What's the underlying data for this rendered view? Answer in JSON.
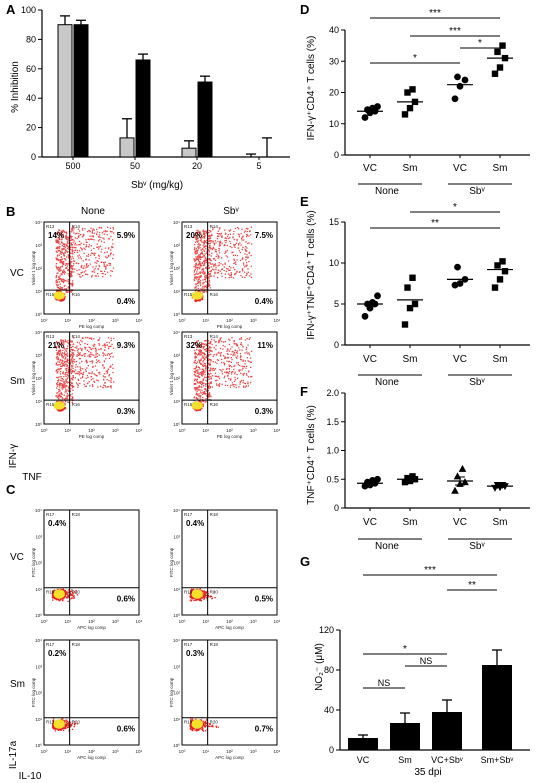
{
  "panels": {
    "A": "A",
    "B": "B",
    "C": "C",
    "D": "D",
    "E": "E",
    "F": "F",
    "G": "G"
  },
  "colors": {
    "flow_dense": "#f5e02a",
    "flow_mid": "#e62020",
    "flow_sparse": "#e84848",
    "grey_bar": "#c8c8c8",
    "black_bar": "#000000"
  },
  "flow": {
    "B": {
      "col_labels": [
        "None",
        "Sbᵛ"
      ],
      "row_labels": [
        "VC",
        "Sm"
      ],
      "y_label": "IFN-γ",
      "x_label": "TNF",
      "axis_y": "Violet 1 log comp",
      "axis_x": "PE log comp",
      "ticks": [
        "10⁰",
        "10¹",
        "10²",
        "10³",
        "10⁴"
      ],
      "region_labels": {
        "ul": "R13",
        "ur": "R14",
        "ll": "R15",
        "lr": "R16"
      },
      "plots": [
        {
          "ul": "14%",
          "ur": "5.9%",
          "lr": "0.4%"
        },
        {
          "ul": "20%",
          "ur": "7.5%",
          "lr": "0.4%"
        },
        {
          "ul": "21%",
          "ur": "9.3%",
          "lr": "0.3%"
        },
        {
          "ul": "32%",
          "ur": "11%",
          "lr": "0.3%"
        }
      ]
    },
    "C": {
      "row_labels": [
        "VC",
        "Sm"
      ],
      "y_label": "IL-17a",
      "x_label": "IL-10",
      "axis_y": "FITC log comp",
      "axis_x": "APC log comp",
      "ticks": [
        "10⁰",
        "10¹",
        "10²",
        "10³",
        "10⁴"
      ],
      "region_labels": {
        "ul": "R17",
        "ur": "R18",
        "ll": "R19",
        "lr": "R20"
      },
      "plots": [
        {
          "ul": "0.4%",
          "lr": "0.6%"
        },
        {
          "ul": "0.4%",
          "lr": "0.5%"
        },
        {
          "ul": "0.2%",
          "lr": "0.6%"
        },
        {
          "ul": "0.3%",
          "lr": "0.7%"
        }
      ]
    }
  },
  "chart_data": [
    {
      "panel": "A",
      "type": "bar",
      "categories": [
        "500",
        "50",
        "20",
        "5"
      ],
      "series": [
        {
          "color": "#c8c8c8",
          "values": [
            90,
            13,
            6,
            0
          ],
          "errors": [
            6,
            13,
            5,
            2
          ]
        },
        {
          "color": "#000000",
          "values": [
            90,
            66,
            51,
            0
          ],
          "errors": [
            3,
            4,
            4,
            13
          ]
        }
      ],
      "ylabel": "% Inhibition",
      "xlabel": "Sbᵛ (mg/kg)",
      "ylim": [
        0,
        100
      ],
      "yticks": [
        0,
        20,
        40,
        60,
        80,
        100
      ]
    },
    {
      "panel": "D",
      "type": "scatter",
      "ylabel": "IFN-γ⁺CD4⁺ T cells (%)",
      "ylim": [
        0,
        40
      ],
      "yticks": [
        0,
        10,
        20,
        30,
        40
      ],
      "categories": [
        "VC",
        "Sm",
        "VC",
        "Sm"
      ],
      "groups": [
        "None",
        "Sbᵛ"
      ],
      "markers": [
        "circle",
        "square",
        "circle",
        "square"
      ],
      "points": [
        [
          12,
          13.5,
          14,
          14.5,
          15,
          15.5
        ],
        [
          13,
          15,
          17,
          20,
          21
        ],
        [
          18,
          22,
          24,
          25
        ],
        [
          26,
          28,
          31,
          33,
          35
        ]
      ],
      "medians": [
        14,
        17,
        22.5,
        31
      ],
      "significance": [
        {
          "from": 0,
          "to": 3,
          "label": "***"
        },
        {
          "from": 1,
          "to": 3,
          "label": "***"
        },
        {
          "from": 2,
          "to": 3,
          "label": "*"
        },
        {
          "from": 0,
          "to": 2,
          "label": "*"
        }
      ]
    },
    {
      "panel": "E",
      "type": "scatter",
      "ylabel": "IFN-γ⁺TNF⁺CD4⁺ T cells (%)",
      "ylim": [
        0,
        15
      ],
      "yticks": [
        0,
        5,
        10,
        15
      ],
      "categories": [
        "VC",
        "Sm",
        "VC",
        "Sm"
      ],
      "groups": [
        "None",
        "Sbᵛ"
      ],
      "markers": [
        "circle",
        "square",
        "circle",
        "square"
      ],
      "points": [
        [
          3.5,
          4.5,
          5,
          5,
          5.2,
          6
        ],
        [
          2.5,
          4.5,
          5,
          7,
          8.2
        ],
        [
          7.3,
          7.5,
          8,
          9.5
        ],
        [
          7,
          8,
          9,
          9.7,
          10.2
        ]
      ],
      "medians": [
        5,
        5.5,
        8,
        9.2
      ],
      "significance": [
        {
          "from": 1,
          "to": 3,
          "label": "*"
        },
        {
          "from": 0,
          "to": 3,
          "label": "**"
        }
      ]
    },
    {
      "panel": "F",
      "type": "scatter",
      "ylabel": "TNF⁺CD4⁺ T cells (%)",
      "ylim": [
        0,
        2.0
      ],
      "yticks": [
        "0",
        "0.5",
        "1.0",
        "1.5",
        "2.0"
      ],
      "categories": [
        "VC",
        "Sm",
        "VC",
        "Sm"
      ],
      "groups": [
        "None",
        "Sbᵛ"
      ],
      "markers": [
        "circle",
        "square",
        "triangle",
        "inv-triangle"
      ],
      "points": [
        [
          0.38,
          0.4,
          0.43,
          0.45,
          0.48,
          0.5
        ],
        [
          0.45,
          0.47,
          0.5,
          0.52,
          0.55
        ],
        [
          0.3,
          0.42,
          0.45,
          0.55,
          0.68
        ],
        [
          0.35,
          0.36,
          0.38,
          0.4,
          0.4
        ]
      ],
      "means": [
        0.43,
        0.5,
        0.47,
        0.38
      ],
      "sem": [
        0.04,
        0.03,
        0.07,
        0.02
      ]
    },
    {
      "panel": "G",
      "type": "bar",
      "categories": [
        "VC",
        "Sm",
        "VC+Sbᵛ",
        "Sm+Sbᵛ"
      ],
      "values": [
        12,
        27,
        38,
        85
      ],
      "errors": [
        3,
        10,
        12,
        15
      ],
      "ylabel": "NO₂⁻ (μM)",
      "xlabel": "35 dpi",
      "ylim": [
        0,
        120
      ],
      "yticks": [
        0,
        40,
        80,
        120
      ],
      "significance": [
        {
          "from": 0,
          "to": 3,
          "label": "***"
        },
        {
          "from": 2,
          "to": 3,
          "label": "**"
        },
        {
          "from": 0,
          "to": 2,
          "label": "*"
        },
        {
          "from": 1,
          "to": 2,
          "label": "NS"
        },
        {
          "from": 0,
          "to": 1,
          "label": "NS"
        }
      ]
    }
  ]
}
